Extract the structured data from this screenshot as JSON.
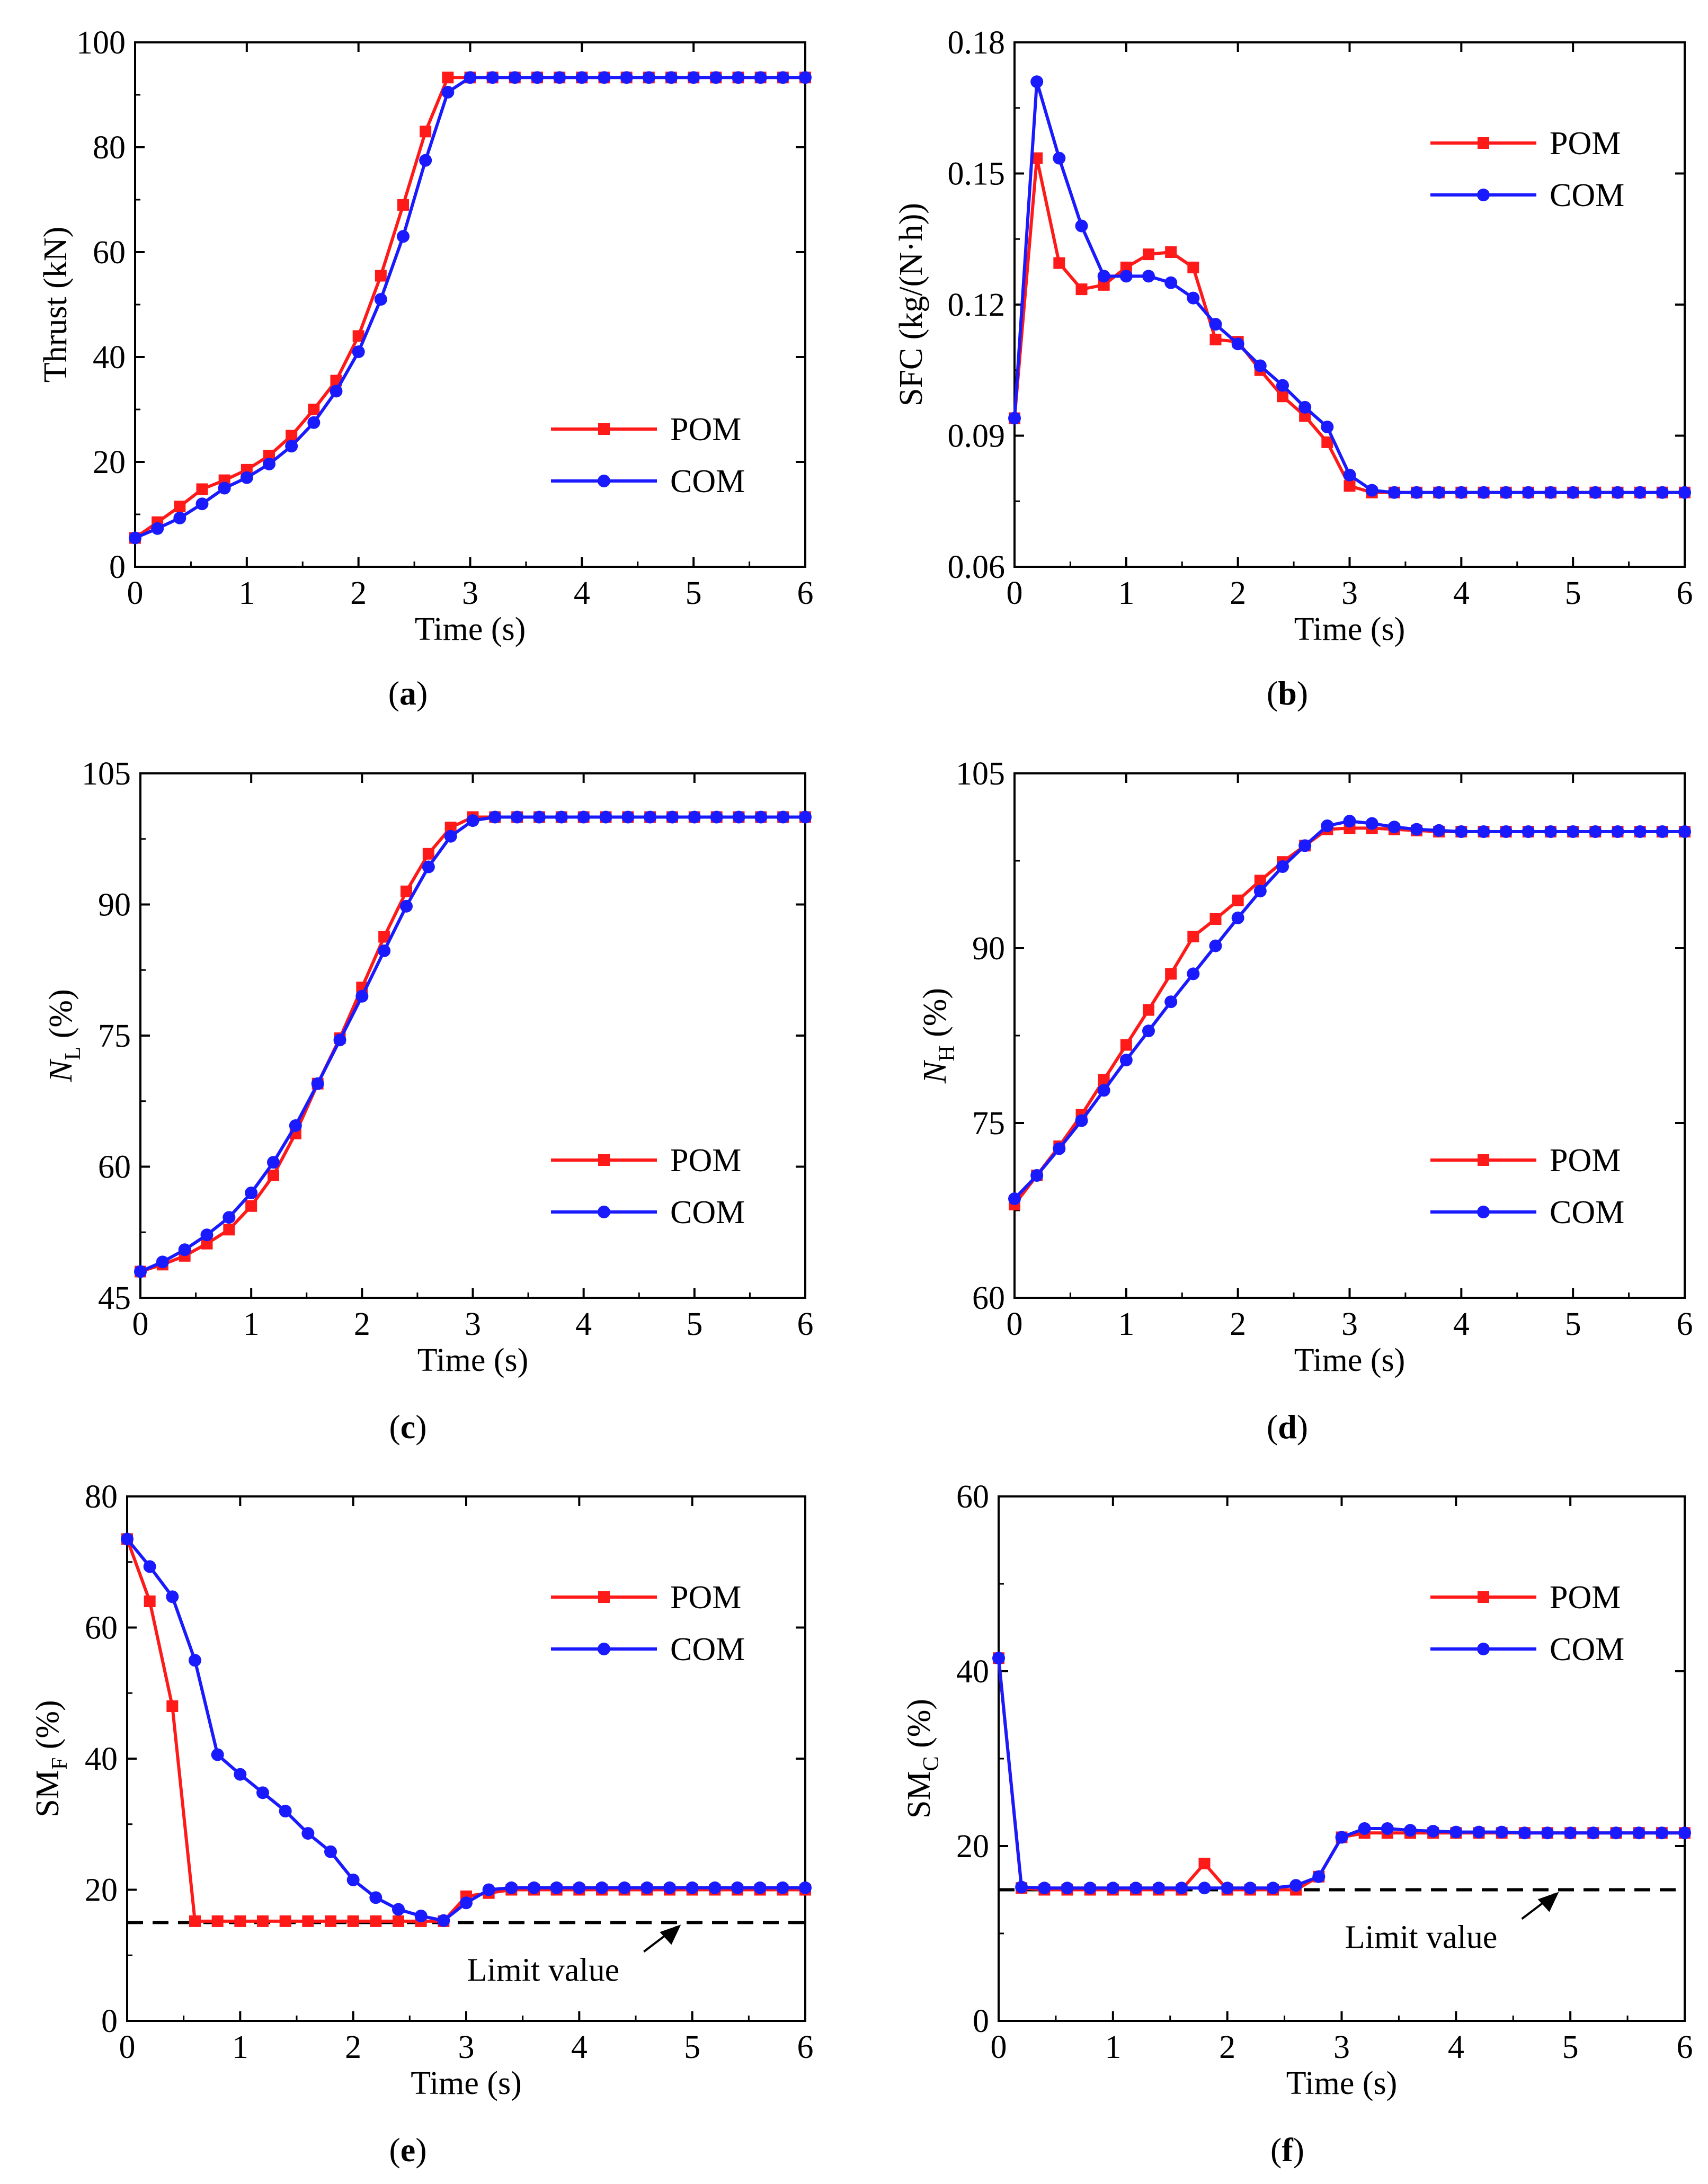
{
  "figure": {
    "series_colors": {
      "POM": "#ff1a1a",
      "COM": "#1a1aff"
    },
    "limit_line_color": "#000000"
  },
  "chart_data": [
    {
      "id": "a",
      "type": "line",
      "panel_label": "a",
      "xlabel": "Time (s)",
      "ylabel": "Thrust (kN)",
      "ylabel_sub": "",
      "ylabel_unit": "",
      "xlim": [
        0,
        6
      ],
      "ylim": [
        0,
        100
      ],
      "xticks": [
        0,
        1,
        2,
        3,
        4,
        5,
        6
      ],
      "yticks": [
        0,
        20,
        40,
        60,
        80,
        100
      ],
      "legend": {
        "position": "right-middle",
        "entries": [
          "POM",
          "COM"
        ]
      },
      "series": [
        {
          "name": "POM",
          "marker": "square",
          "x": [
            0,
            0.2,
            0.4,
            0.6,
            0.8,
            1.0,
            1.2,
            1.4,
            1.6,
            1.8,
            2.0,
            2.2,
            2.4,
            2.6,
            2.8,
            3.0,
            3.2,
            3.4,
            3.6,
            3.8,
            4.0,
            4.2,
            4.4,
            4.6,
            4.8,
            5.0,
            5.2,
            5.4,
            5.6,
            5.8,
            6.0
          ],
          "y": [
            5.5,
            8.5,
            11.5,
            14.8,
            16.5,
            18.5,
            21.2,
            25,
            30,
            35.5,
            44,
            55.5,
            69,
            83,
            93.3,
            93.3,
            93.3,
            93.3,
            93.3,
            93.3,
            93.3,
            93.3,
            93.3,
            93.3,
            93.3,
            93.3,
            93.3,
            93.3,
            93.3,
            93.3,
            93.3
          ]
        },
        {
          "name": "COM",
          "marker": "circle",
          "x": [
            0,
            0.2,
            0.4,
            0.6,
            0.8,
            1.0,
            1.2,
            1.4,
            1.6,
            1.8,
            2.0,
            2.2,
            2.4,
            2.6,
            2.8,
            3.0,
            3.2,
            3.4,
            3.6,
            3.8,
            4.0,
            4.2,
            4.4,
            4.6,
            4.8,
            5.0,
            5.2,
            5.4,
            5.6,
            5.8,
            6.0
          ],
          "y": [
            5.5,
            7.3,
            9.3,
            12,
            15,
            17,
            19.6,
            23,
            27.5,
            33.5,
            41,
            51,
            63,
            77.5,
            90.5,
            93.3,
            93.3,
            93.3,
            93.3,
            93.3,
            93.3,
            93.3,
            93.3,
            93.3,
            93.3,
            93.3,
            93.3,
            93.3,
            93.3,
            93.3,
            93.3
          ]
        }
      ]
    },
    {
      "id": "b",
      "type": "line",
      "panel_label": "b",
      "xlabel": "Time (s)",
      "ylabel": "SFC (kg/(N·h))",
      "ylabel_sub": "",
      "ylabel_unit": "",
      "xlim": [
        0,
        6
      ],
      "ylim": [
        0.06,
        0.18
      ],
      "xticks": [
        0,
        1,
        2,
        3,
        4,
        5,
        6
      ],
      "yticks": [
        0.06,
        0.09,
        0.12,
        0.15,
        0.18
      ],
      "yticks_text": [
        "0.06",
        "0.09",
        "0.12",
        "0.15",
        "0.18"
      ],
      "legend": {
        "position": "top-right",
        "entries": [
          "POM",
          "COM"
        ]
      },
      "series": [
        {
          "name": "POM",
          "marker": "square",
          "x": [
            0,
            0.2,
            0.4,
            0.6,
            0.8,
            1.0,
            1.2,
            1.4,
            1.6,
            1.8,
            2.0,
            2.2,
            2.4,
            2.6,
            2.8,
            3.0,
            3.2,
            3.4,
            3.6,
            3.8,
            4.0,
            4.2,
            4.4,
            4.6,
            4.8,
            5.0,
            5.2,
            5.4,
            5.6,
            5.8,
            6.0
          ],
          "y": [
            0.094,
            0.1535,
            0.1295,
            0.1235,
            0.1245,
            0.1285,
            0.1315,
            0.132,
            0.1285,
            0.112,
            0.1115,
            0.105,
            0.099,
            0.0945,
            0.0885,
            0.0785,
            0.077,
            0.077,
            0.077,
            0.077,
            0.077,
            0.077,
            0.077,
            0.077,
            0.077,
            0.077,
            0.077,
            0.077,
            0.077,
            0.077,
            0.077
          ]
        },
        {
          "name": "COM",
          "marker": "circle",
          "x": [
            0,
            0.2,
            0.4,
            0.6,
            0.8,
            1.0,
            1.2,
            1.4,
            1.6,
            1.8,
            2.0,
            2.2,
            2.4,
            2.6,
            2.8,
            3.0,
            3.2,
            3.4,
            3.6,
            3.8,
            4.0,
            4.2,
            4.4,
            4.6,
            4.8,
            5.0,
            5.2,
            5.4,
            5.6,
            5.8,
            6.0
          ],
          "y": [
            0.094,
            0.171,
            0.1535,
            0.138,
            0.1265,
            0.1265,
            0.1265,
            0.125,
            0.1215,
            0.1155,
            0.111,
            0.106,
            0.1015,
            0.0965,
            0.092,
            0.081,
            0.0775,
            0.077,
            0.077,
            0.077,
            0.077,
            0.077,
            0.077,
            0.077,
            0.077,
            0.077,
            0.077,
            0.077,
            0.077,
            0.077,
            0.077
          ]
        }
      ]
    },
    {
      "id": "c",
      "type": "line",
      "panel_label": "c",
      "xlabel": "Time (s)",
      "ylabel": "N",
      "ylabel_sub": "L",
      "ylabel_unit": " (%)",
      "xlim": [
        0,
        6
      ],
      "ylim": [
        45,
        105
      ],
      "xticks": [
        0,
        1,
        2,
        3,
        4,
        5,
        6
      ],
      "yticks": [
        45,
        60,
        75,
        90,
        105
      ],
      "legend": {
        "position": "bottom-right",
        "entries": [
          "POM",
          "COM"
        ]
      },
      "series": [
        {
          "name": "POM",
          "marker": "square",
          "x": [
            0,
            0.2,
            0.4,
            0.6,
            0.8,
            1.0,
            1.2,
            1.4,
            1.6,
            1.8,
            2.0,
            2.2,
            2.4,
            2.6,
            2.8,
            3.0,
            3.2,
            3.4,
            3.6,
            3.8,
            4.0,
            4.2,
            4.4,
            4.6,
            4.8,
            5.0,
            5.2,
            5.4,
            5.6,
            5.8,
            6.0
          ],
          "y": [
            48,
            48.8,
            49.8,
            51.2,
            52.8,
            55.5,
            59,
            63.8,
            69.5,
            74.7,
            80.5,
            86.3,
            91.5,
            95.8,
            98.8,
            100,
            100,
            100,
            100,
            100,
            100,
            100,
            100,
            100,
            100,
            100,
            100,
            100,
            100,
            100,
            100
          ]
        },
        {
          "name": "COM",
          "marker": "circle",
          "x": [
            0,
            0.2,
            0.4,
            0.6,
            0.8,
            1.0,
            1.2,
            1.4,
            1.6,
            1.8,
            2.0,
            2.2,
            2.4,
            2.6,
            2.8,
            3.0,
            3.2,
            3.4,
            3.6,
            3.8,
            4.0,
            4.2,
            4.4,
            4.6,
            4.8,
            5.0,
            5.2,
            5.4,
            5.6,
            5.8,
            6.0
          ],
          "y": [
            48,
            49.1,
            50.5,
            52.2,
            54.2,
            57,
            60.5,
            64.7,
            69.5,
            74.5,
            79.5,
            84.7,
            89.8,
            94.3,
            97.8,
            99.6,
            100,
            100,
            100,
            100,
            100,
            100,
            100,
            100,
            100,
            100,
            100,
            100,
            100,
            100,
            100
          ]
        }
      ]
    },
    {
      "id": "d",
      "type": "line",
      "panel_label": "d",
      "xlabel": "Time (s)",
      "ylabel": "N",
      "ylabel_sub": "H",
      "ylabel_unit": " (%)",
      "xlim": [
        0,
        6
      ],
      "ylim": [
        60,
        105
      ],
      "xticks": [
        0,
        1,
        2,
        3,
        4,
        5,
        6
      ],
      "yticks": [
        60,
        75,
        90,
        105
      ],
      "legend": {
        "position": "bottom-right",
        "entries": [
          "POM",
          "COM"
        ]
      },
      "series": [
        {
          "name": "POM",
          "marker": "square",
          "x": [
            0,
            0.2,
            0.4,
            0.6,
            0.8,
            1.0,
            1.2,
            1.4,
            1.6,
            1.8,
            2.0,
            2.2,
            2.4,
            2.6,
            2.8,
            3.0,
            3.2,
            3.4,
            3.6,
            3.8,
            4.0,
            4.2,
            4.4,
            4.6,
            4.8,
            5.0,
            5.2,
            5.4,
            5.6,
            5.8,
            6.0
          ],
          "y": [
            68,
            70.5,
            73,
            75.7,
            78.7,
            81.7,
            84.7,
            87.8,
            91,
            92.5,
            94.1,
            95.8,
            97.4,
            98.8,
            100.2,
            100.3,
            100.3,
            100.2,
            100.1,
            100,
            100,
            100,
            100,
            100,
            100,
            100,
            100,
            100,
            100,
            100,
            100
          ]
        },
        {
          "name": "COM",
          "marker": "circle",
          "x": [
            0,
            0.2,
            0.4,
            0.6,
            0.8,
            1.0,
            1.2,
            1.4,
            1.6,
            1.8,
            2.0,
            2.2,
            2.4,
            2.6,
            2.8,
            3.0,
            3.2,
            3.4,
            3.6,
            3.8,
            4.0,
            4.2,
            4.4,
            4.6,
            4.8,
            5.0,
            5.2,
            5.4,
            5.6,
            5.8,
            6.0
          ],
          "y": [
            68.5,
            70.5,
            72.8,
            75.2,
            77.8,
            80.4,
            82.9,
            85.4,
            87.8,
            90.2,
            92.6,
            94.9,
            97,
            98.8,
            100.5,
            100.9,
            100.7,
            100.4,
            100.2,
            100.1,
            100,
            100,
            100,
            100,
            100,
            100,
            100,
            100,
            100,
            100,
            100
          ]
        }
      ]
    },
    {
      "id": "e",
      "type": "line",
      "panel_label": "e",
      "xlabel": "Time (s)",
      "ylabel": "SM",
      "ylabel_sub": "F",
      "ylabel_unit": " (%)",
      "xlim": [
        0,
        6
      ],
      "ylim": [
        0,
        80
      ],
      "xticks": [
        0,
        1,
        2,
        3,
        4,
        5,
        6
      ],
      "yticks": [
        0,
        20,
        40,
        60,
        80
      ],
      "legend": {
        "position": "top-right",
        "entries": [
          "POM",
          "COM"
        ]
      },
      "limit": {
        "y": 15,
        "label": "Limit value",
        "arrow_to_x": 4.9
      },
      "series": [
        {
          "name": "POM",
          "marker": "square",
          "x": [
            0,
            0.2,
            0.4,
            0.6,
            0.8,
            1.0,
            1.2,
            1.4,
            1.6,
            1.8,
            2.0,
            2.2,
            2.4,
            2.6,
            2.8,
            3.0,
            3.2,
            3.4,
            3.6,
            3.8,
            4.0,
            4.2,
            4.4,
            4.6,
            4.8,
            5.0,
            5.2,
            5.4,
            5.6,
            5.8,
            6.0
          ],
          "y": [
            73.5,
            64,
            48,
            15.2,
            15.2,
            15.2,
            15.2,
            15.2,
            15.2,
            15.2,
            15.2,
            15.2,
            15.2,
            15.2,
            15.2,
            19,
            19.5,
            20,
            20,
            20,
            20,
            20,
            20,
            20,
            20,
            20,
            20,
            20,
            20,
            20,
            20
          ]
        },
        {
          "name": "COM",
          "marker": "circle",
          "x": [
            0,
            0.2,
            0.4,
            0.6,
            0.8,
            1.0,
            1.2,
            1.4,
            1.6,
            1.8,
            2.0,
            2.2,
            2.4,
            2.6,
            2.8,
            3.0,
            3.2,
            3.4,
            3.6,
            3.8,
            4.0,
            4.2,
            4.4,
            4.6,
            4.8,
            5.0,
            5.2,
            5.4,
            5.6,
            5.8,
            6.0
          ],
          "y": [
            73.5,
            69.3,
            64.7,
            55,
            40.6,
            37.6,
            34.8,
            32,
            28.6,
            25.8,
            21.5,
            18.8,
            17,
            16,
            15.3,
            18,
            20,
            20.3,
            20.3,
            20.3,
            20.3,
            20.3,
            20.3,
            20.3,
            20.3,
            20.3,
            20.3,
            20.3,
            20.3,
            20.3,
            20.3
          ]
        }
      ]
    },
    {
      "id": "f",
      "type": "line",
      "panel_label": "f",
      "xlabel": "Time (s)",
      "ylabel": "SM",
      "ylabel_sub": "C",
      "ylabel_unit": " (%)",
      "xlim": [
        0,
        6
      ],
      "ylim": [
        0,
        60
      ],
      "xticks": [
        0,
        1,
        2,
        3,
        4,
        5,
        6
      ],
      "yticks": [
        0,
        20,
        40,
        60
      ],
      "legend": {
        "position": "top-right",
        "entries": [
          "POM",
          "COM"
        ]
      },
      "limit": {
        "y": 15,
        "label": "Limit value",
        "arrow_to_x": 4.9
      },
      "series": [
        {
          "name": "POM",
          "marker": "square",
          "x": [
            0,
            0.2,
            0.4,
            0.6,
            0.8,
            1.0,
            1.2,
            1.4,
            1.6,
            1.8,
            2.0,
            2.2,
            2.4,
            2.6,
            2.8,
            3.0,
            3.2,
            3.4,
            3.6,
            3.8,
            4.0,
            4.2,
            4.4,
            4.6,
            4.8,
            5.0,
            5.2,
            5.4,
            5.6,
            5.8,
            6.0
          ],
          "y": [
            41.5,
            15.2,
            15,
            15,
            15,
            15,
            15,
            15,
            15,
            18,
            15,
            15,
            15,
            15,
            16.5,
            21,
            21.5,
            21.5,
            21.5,
            21.5,
            21.5,
            21.5,
            21.5,
            21.5,
            21.5,
            21.5,
            21.5,
            21.5,
            21.5,
            21.5,
            21.5
          ]
        },
        {
          "name": "COM",
          "marker": "circle",
          "x": [
            0,
            0.2,
            0.4,
            0.6,
            0.8,
            1.0,
            1.2,
            1.4,
            1.6,
            1.8,
            2.0,
            2.2,
            2.4,
            2.6,
            2.8,
            3.0,
            3.2,
            3.4,
            3.6,
            3.8,
            4.0,
            4.2,
            4.4,
            4.6,
            4.8,
            5.0,
            5.2,
            5.4,
            5.6,
            5.8,
            6.0
          ],
          "y": [
            41.5,
            15.3,
            15.2,
            15.2,
            15.2,
            15.2,
            15.2,
            15.2,
            15.2,
            15.2,
            15.2,
            15.2,
            15.2,
            15.5,
            16.5,
            21,
            22,
            22,
            21.8,
            21.7,
            21.6,
            21.6,
            21.6,
            21.5,
            21.5,
            21.5,
            21.5,
            21.5,
            21.5,
            21.5,
            21.5
          ]
        }
      ]
    }
  ]
}
